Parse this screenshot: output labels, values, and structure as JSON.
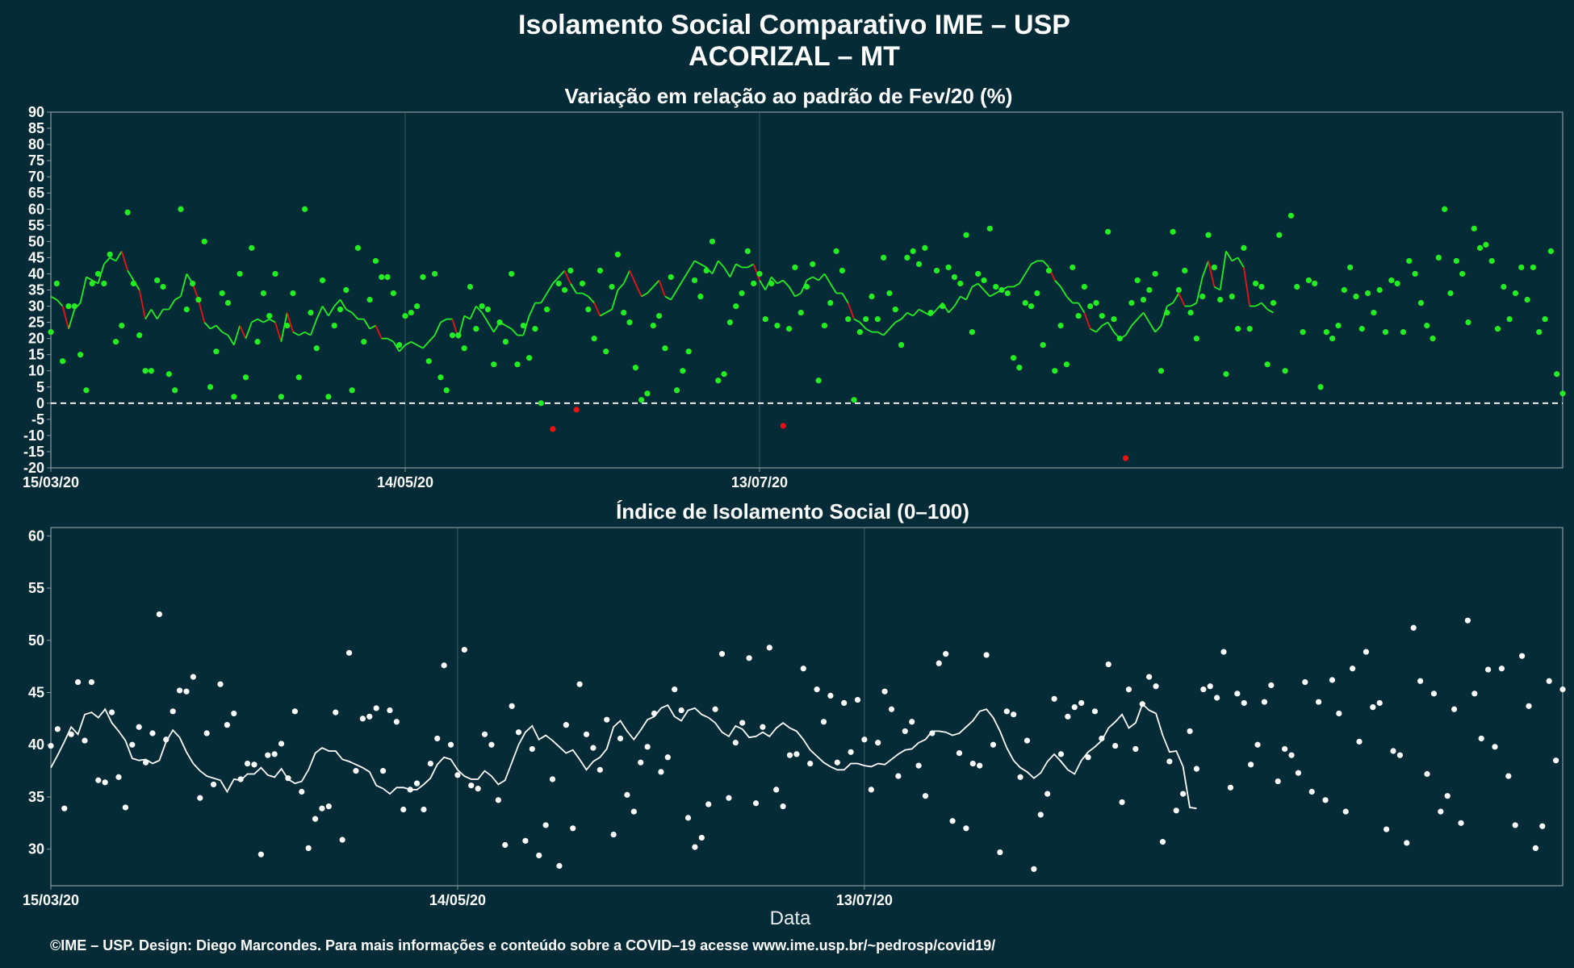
{
  "title": "Isolamento Social Comparativo IME – USP",
  "subtitle": "ACORIZAL – MT",
  "xlabel": "Data",
  "caption": "©IME – USP. Design: Diego Marcondes. Para mais informações e conteúdo sobre a COVID–19 acesse www.ime.usp.br/~pedrosp/covid19/",
  "colors": {
    "background": "#042b36",
    "panel_border": "#8a9aa0",
    "grid": "#3d5a63",
    "positive": "#22ee22",
    "negative": "#ee1111",
    "index": "#ffffff"
  },
  "chart_data": [
    {
      "type": "scatter",
      "title": "Variação em relação ao padrão de Fev/20 (%)",
      "x_start_label": "15/03/20",
      "x_tick_labels": [
        "15/03/20",
        "14/05/20",
        "13/07/20"
      ],
      "ylim": [
        -20,
        90
      ],
      "y_ticks": [
        -20,
        -15,
        -10,
        -5,
        0,
        5,
        10,
        15,
        20,
        25,
        30,
        35,
        40,
        45,
        50,
        55,
        60,
        65,
        70,
        75,
        80,
        85,
        90
      ],
      "reference_line": 0,
      "grid": true,
      "values": [
        22,
        37,
        13,
        30,
        30,
        15,
        4,
        37,
        40,
        37,
        46,
        19,
        24,
        59,
        37,
        21,
        10,
        10,
        38,
        36,
        9,
        4,
        60,
        29,
        37,
        32,
        50,
        5,
        16,
        34,
        31,
        2,
        40,
        8,
        48,
        19,
        34,
        27,
        40,
        2,
        24,
        34,
        8,
        60,
        28,
        17,
        38,
        2,
        24,
        29,
        35,
        4,
        48,
        19,
        32,
        44,
        39,
        39,
        34,
        18,
        27,
        28,
        30,
        39,
        13,
        40,
        8,
        4,
        21,
        21,
        17,
        36,
        23,
        30,
        29,
        12,
        25,
        19,
        40,
        12,
        24,
        14,
        23,
        0,
        29,
        -8,
        37,
        35,
        41,
        -2,
        37,
        29,
        20,
        41,
        16,
        36,
        46,
        28,
        25,
        11,
        1,
        3,
        24,
        27,
        17,
        39,
        4,
        10,
        16,
        38,
        33,
        41,
        50,
        7,
        9,
        25,
        30,
        34,
        47,
        37,
        40,
        26,
        37,
        24,
        -7,
        23,
        42,
        28,
        36,
        43,
        7,
        24,
        31,
        47,
        41,
        26,
        1,
        22,
        26,
        33,
        26,
        45,
        34,
        29,
        18,
        45,
        47,
        43,
        48,
        28,
        41,
        30,
        42,
        39,
        37,
        52,
        22,
        40,
        38,
        54,
        36,
        35,
        34,
        14,
        11,
        31,
        30,
        34,
        18,
        41,
        10,
        24,
        12,
        42,
        27,
        36,
        30,
        31,
        27,
        53,
        26,
        20,
        -17,
        31,
        38,
        32,
        35,
        40,
        10,
        28,
        53,
        35,
        41,
        28,
        20,
        33,
        52,
        42,
        32,
        9,
        33,
        23,
        48,
        23,
        37,
        36,
        12,
        31,
        52,
        10,
        58,
        36,
        22,
        38,
        37,
        5,
        22,
        20,
        24,
        35,
        42,
        33,
        23,
        34,
        28,
        35,
        22,
        38,
        37,
        22,
        44,
        40,
        31,
        24,
        20,
        45,
        60,
        34,
        44,
        40,
        25,
        54,
        48,
        49,
        44,
        23,
        36,
        26,
        34,
        42,
        32,
        42,
        22,
        26,
        47,
        9,
        3
      ],
      "trend": [
        33,
        32,
        30,
        23,
        29,
        31,
        39,
        38,
        37,
        43,
        45,
        44,
        47,
        41,
        38,
        35,
        26,
        29,
        26,
        29,
        29,
        32,
        33,
        40,
        37,
        32,
        25,
        23,
        24,
        22,
        21,
        18,
        24,
        20,
        25,
        26,
        25,
        26,
        25,
        19,
        28,
        22,
        21,
        22,
        21,
        26,
        30,
        27,
        30,
        32,
        29,
        28,
        26,
        26,
        23,
        24,
        20,
        20,
        19,
        16,
        18,
        19,
        18,
        17,
        19,
        21,
        25,
        26,
        26,
        20,
        27,
        26,
        30,
        28,
        25,
        22,
        25,
        24,
        23,
        21,
        21,
        27,
        31,
        31,
        34,
        37,
        39,
        41,
        37,
        34,
        34,
        33,
        31,
        27,
        28,
        29,
        35,
        37,
        41,
        37,
        33,
        34,
        36,
        38,
        33,
        32,
        35,
        38,
        41,
        44,
        43,
        42,
        40,
        44,
        42,
        39,
        43,
        42,
        42,
        43,
        38,
        35,
        39,
        37,
        38,
        36,
        33,
        34,
        38,
        39,
        38,
        40,
        37,
        34,
        34,
        31,
        26,
        25,
        23,
        22,
        22,
        21,
        23,
        25,
        26,
        28,
        27,
        29,
        28,
        27,
        29,
        31,
        28,
        30,
        33,
        32,
        36,
        37,
        35,
        33,
        34,
        35,
        36,
        36,
        37,
        40,
        43,
        44,
        44,
        42,
        38,
        36,
        33,
        31,
        31,
        28,
        23,
        22,
        24,
        25,
        22,
        20,
        21,
        24,
        26,
        28,
        25,
        22,
        24,
        30,
        31,
        34,
        30,
        30,
        31,
        39,
        44,
        36,
        35,
        47,
        44,
        45,
        42,
        30,
        30,
        31,
        29,
        28
      ]
    },
    {
      "type": "scatter",
      "title": "Índice de Isolamento Social (0–100)",
      "x_start_label": "15/03/20",
      "x_tick_labels": [
        "15/03/20",
        "14/05/20",
        "13/07/20"
      ],
      "ylim": [
        26.5,
        60.8
      ],
      "y_ticks": [
        30,
        35,
        40,
        45,
        50,
        55,
        60
      ],
      "grid": true,
      "values": [
        39.9,
        41.5,
        33.9,
        41.0,
        46.0,
        40.4,
        46.0,
        36.6,
        36.4,
        43.1,
        36.9,
        34.0,
        40.0,
        41.7,
        38.3,
        41.1,
        52.5,
        40.5,
        43.2,
        45.2,
        45.1,
        46.5,
        34.9,
        41.1,
        36.2,
        45.8,
        41.9,
        43.0,
        36.7,
        38.2,
        38.1,
        29.5,
        39.0,
        39.1,
        40.1,
        36.8,
        43.2,
        35.5,
        30.1,
        32.9,
        33.9,
        34.1,
        43.1,
        30.9,
        48.8,
        37.5,
        42.5,
        42.7,
        43.5,
        37.5,
        43.3,
        42.2,
        33.8,
        35.7,
        36.3,
        33.8,
        38.2,
        40.6,
        47.6,
        40.0,
        37.1,
        49.1,
        36.1,
        35.8,
        41.0,
        40.0,
        34.7,
        30.4,
        43.7,
        41.2,
        30.8,
        39.6,
        29.4,
        32.3,
        36.7,
        28.4,
        41.9,
        32.0,
        45.8,
        41.0,
        39.7,
        37.6,
        42.4,
        31.4,
        40.6,
        35.2,
        33.6,
        38.3,
        39.8,
        43.0,
        37.4,
        38.8,
        45.3,
        43.3,
        33.0,
        30.2,
        31.1,
        34.3,
        43.4,
        48.7,
        34.9,
        40.2,
        42.1,
        48.3,
        34.4,
        41.7,
        49.3,
        35.7,
        34.1,
        39.0,
        39.1,
        47.3,
        38.2,
        45.3,
        42.2,
        44.7,
        38.3,
        44.0,
        39.3,
        44.3,
        40.5,
        35.7,
        40.2,
        45.1,
        43.4,
        37.0,
        41.3,
        42.2,
        38.0,
        35.1,
        41.1,
        47.8,
        48.7,
        32.7,
        39.2,
        32.0,
        38.2,
        38.0,
        48.6,
        40.0,
        29.7,
        43.2,
        42.9,
        36.9,
        40.4,
        28.1,
        33.3,
        35.3,
        44.4,
        39.1,
        42.7,
        43.6,
        44.0,
        38.8,
        43.2,
        40.6,
        47.7,
        39.9,
        34.5,
        45.3,
        39.6,
        43.9,
        46.5,
        45.6,
        30.7,
        38.4,
        33.7,
        35.3,
        41.3,
        37.7,
        45.3,
        45.6,
        44.5,
        48.9,
        35.9,
        44.9,
        44.0,
        38.1,
        40.0,
        44.1,
        45.7,
        36.5,
        39.6,
        39.0,
        37.3,
        46.0,
        35.5,
        44.1,
        34.7,
        46.2,
        43.0,
        33.6,
        47.3,
        40.3,
        48.9,
        43.6,
        44.0,
        31.9,
        39.4,
        39.0,
        30.6,
        51.2,
        46.1,
        37.2,
        44.9,
        33.6,
        35.1,
        43.4,
        32.5,
        51.9,
        44.9,
        40.6,
        47.2,
        39.8,
        47.3,
        37.0,
        32.3,
        48.5,
        43.7,
        30.1,
        32.2,
        46.1,
        38.5,
        45.3
      ],
      "trend": [
        37.8,
        39.0,
        40.3,
        41.7,
        41.0,
        42.9,
        43.1,
        42.6,
        43.4,
        42.1,
        41.3,
        40.4,
        38.7,
        38.5,
        38.6,
        38.2,
        38.5,
        40.3,
        41.4,
        40.7,
        39.3,
        38.2,
        37.5,
        37.0,
        36.8,
        36.6,
        35.5,
        36.7,
        36.6,
        37.2,
        37.2,
        37.8,
        37.1,
        36.9,
        37.7,
        36.7,
        36.3,
        36.5,
        37.6,
        39.2,
        39.7,
        39.4,
        39.4,
        38.6,
        38.4,
        38.1,
        37.8,
        37.4,
        36.1,
        35.8,
        35.3,
        35.9,
        35.9,
        35.7,
        35.7,
        36.2,
        36.8,
        38.1,
        38.8,
        38.6,
        37.6,
        37.0,
        36.7,
        36.7,
        37.5,
        37.0,
        36.2,
        36.6,
        38.3,
        40.0,
        41.2,
        41.8,
        40.5,
        40.9,
        40.4,
        39.8,
        39.2,
        39.5,
        38.6,
        37.6,
        38.4,
        38.8,
        39.6,
        41.7,
        42.3,
        41.3,
        40.5,
        41.4,
        42.4,
        42.7,
        43.5,
        43.8,
        42.7,
        42.3,
        43.3,
        43.5,
        42.9,
        42.6,
        42.1,
        41.2,
        40.8,
        41.8,
        41.5,
        40.7,
        40.8,
        41.2,
        40.8,
        41.6,
        42.1,
        41.6,
        41.3,
        40.5,
        39.5,
        38.9,
        38.3,
        37.9,
        37.6,
        37.6,
        38.2,
        38.2,
        38.0,
        37.9,
        38.2,
        38.1,
        38.6,
        39.1,
        39.5,
        39.6,
        40.2,
        40.5,
        41.3,
        41.3,
        41.2,
        40.9,
        41.1,
        41.7,
        42.3,
        43.2,
        43.4,
        42.6,
        41.3,
        39.7,
        38.5,
        37.8,
        37.4,
        36.8,
        37.3,
        38.4,
        39.1,
        38.4,
        37.6,
        37.2,
        38.5,
        39.3,
        39.8,
        40.4,
        41.6,
        42.2,
        42.9,
        41.6,
        42.1,
        43.9,
        43.3,
        43.0,
        40.9,
        39.3,
        39.4,
        37.9,
        34.0,
        33.9
      ]
    }
  ]
}
